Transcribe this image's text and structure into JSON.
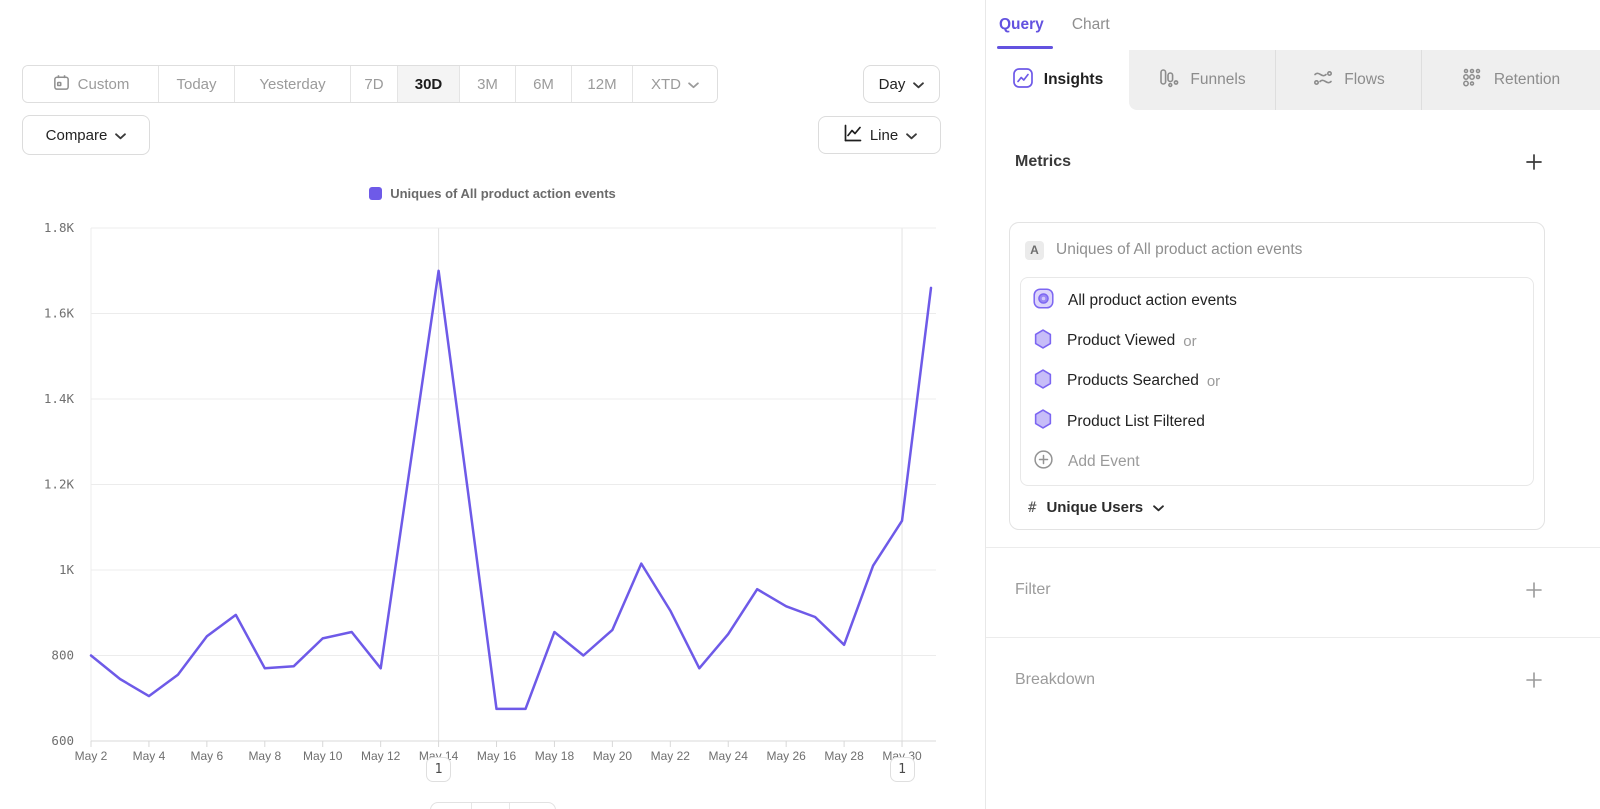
{
  "toolbar": {
    "date_ranges": [
      "Custom",
      "Today",
      "Yesterday",
      "7D",
      "30D",
      "3M",
      "6M",
      "12M",
      "XTD"
    ],
    "selected_range": "30D",
    "granularity": "Day",
    "compare_label": "Compare",
    "chart_type": "Line"
  },
  "chart_data": {
    "type": "line",
    "legend": "Uniques of All product action events",
    "ylim": [
      600,
      1800
    ],
    "y_ticks": [
      {
        "label": "600",
        "value": 600
      },
      {
        "label": "800",
        "value": 800
      },
      {
        "label": "1K",
        "value": 1000
      },
      {
        "label": "1.2K",
        "value": 1200
      },
      {
        "label": "1.4K",
        "value": 1400
      },
      {
        "label": "1.6K",
        "value": 1600
      },
      {
        "label": "1.8K",
        "value": 1800
      }
    ],
    "x_label_interval": 2,
    "grid": "horizontal",
    "series": [
      {
        "name": "Uniques of All product action events",
        "color": "#6e5ae8",
        "x": [
          "May 2",
          "May 3",
          "May 4",
          "May 5",
          "May 6",
          "May 7",
          "May 8",
          "May 9",
          "May 10",
          "May 11",
          "May 12",
          "May 13",
          "May 14",
          "May 15",
          "May 16",
          "May 17",
          "May 18",
          "May 19",
          "May 20",
          "May 21",
          "May 22",
          "May 23",
          "May 24",
          "May 25",
          "May 26",
          "May 27",
          "May 28",
          "May 29",
          "May 30",
          "May 31"
        ],
        "values": [
          800,
          745,
          705,
          755,
          845,
          895,
          770,
          775,
          840,
          855,
          770,
          1235,
          1700,
          1190,
          675,
          675,
          855,
          800,
          860,
          1015,
          905,
          770,
          850,
          955,
          915,
          890,
          825,
          1010,
          1115,
          1660
        ]
      }
    ]
  },
  "annotations": [
    {
      "label": "1",
      "x": "May 14"
    },
    {
      "label": "1",
      "x": "May 30"
    }
  ],
  "panel": {
    "top_tabs": [
      "Query",
      "Chart"
    ],
    "active_top_tab": "Query",
    "report_tabs": [
      {
        "label": "Insights",
        "icon": "insights-icon",
        "active": true
      },
      {
        "label": "Funnels",
        "icon": "funnels-icon",
        "active": false
      },
      {
        "label": "Flows",
        "icon": "flows-icon",
        "active": false
      },
      {
        "label": "Retention",
        "icon": "retention-icon",
        "active": false
      }
    ],
    "metrics": {
      "title": "Metrics",
      "group_label": "A",
      "group_title": "Uniques of All product action events",
      "events": [
        {
          "name": "All product action events",
          "suffix": ""
        },
        {
          "name": "Product Viewed",
          "suffix": "or"
        },
        {
          "name": "Products Searched",
          "suffix": "or"
        },
        {
          "name": "Product List Filtered",
          "suffix": ""
        }
      ],
      "add_event_label": "Add Event",
      "aggregation": {
        "symbol": "#",
        "label": "Unique Users"
      }
    },
    "filter": {
      "title": "Filter"
    },
    "breakdown": {
      "title": "Breakdown"
    }
  },
  "colors": {
    "accent": "#6352e0",
    "series_a": "#6e5ae8",
    "inactive_text": "#9b9b9b"
  }
}
